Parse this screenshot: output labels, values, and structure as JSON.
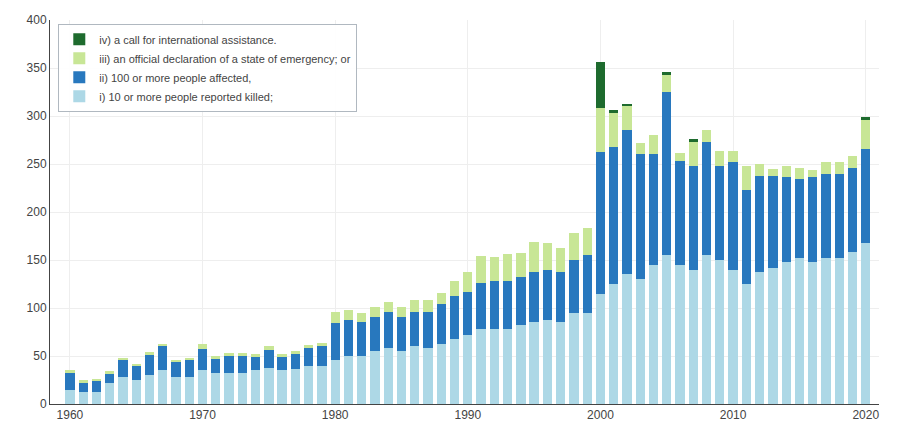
{
  "chart_data": {
    "type": "bar",
    "stacked": true,
    "x": [
      1960,
      1961,
      1962,
      1963,
      1964,
      1965,
      1966,
      1967,
      1968,
      1969,
      1970,
      1971,
      1972,
      1973,
      1974,
      1975,
      1976,
      1977,
      1978,
      1979,
      1980,
      1981,
      1982,
      1983,
      1984,
      1985,
      1986,
      1987,
      1988,
      1989,
      1990,
      1991,
      1992,
      1993,
      1994,
      1995,
      1996,
      1997,
      1998,
      1999,
      2000,
      2001,
      2002,
      2003,
      2004,
      2005,
      2006,
      2007,
      2008,
      2009,
      2010,
      2011,
      2012,
      2013,
      2014,
      2015,
      2016,
      2017,
      2018,
      2019,
      2020
    ],
    "series": [
      {
        "name": "i) 10 or more people reported killed;",
        "color": "#add8e6",
        "values": [
          15,
          12,
          12,
          22,
          28,
          25,
          30,
          35,
          28,
          28,
          35,
          32,
          32,
          32,
          35,
          38,
          35,
          36,
          40,
          40,
          46,
          50,
          50,
          55,
          58,
          55,
          60,
          58,
          62,
          68,
          72,
          78,
          78,
          78,
          82,
          85,
          88,
          85,
          95,
          95,
          115,
          125,
          135,
          130,
          145,
          155,
          145,
          140,
          155,
          150,
          140,
          125,
          138,
          142,
          148,
          152,
          148,
          152,
          152,
          158,
          168
        ]
      },
      {
        "name": "ii) 100 or more people affected,",
        "color": "#2878be",
        "values": [
          18,
          10,
          12,
          10,
          18,
          15,
          22,
          26,
          16,
          18,
          22,
          15,
          18,
          18,
          14,
          18,
          14,
          16,
          18,
          20,
          38,
          38,
          35,
          36,
          38,
          36,
          36,
          38,
          42,
          44,
          45,
          48,
          50,
          50,
          50,
          52,
          52,
          52,
          55,
          60,
          148,
          143,
          150,
          130,
          115,
          170,
          108,
          108,
          118,
          98,
          112,
          98,
          100,
          95,
          88,
          82,
          88,
          88,
          88,
          88,
          98
        ]
      },
      {
        "name": "iii) an official declaration of a state of emergency; or",
        "color": "#c8e696",
        "values": [
          2,
          3,
          2,
          2,
          2,
          2,
          2,
          2,
          2,
          2,
          5,
          3,
          3,
          3,
          3,
          4,
          3,
          3,
          3,
          4,
          12,
          10,
          10,
          10,
          10,
          10,
          12,
          12,
          12,
          16,
          20,
          28,
          25,
          28,
          25,
          32,
          28,
          25,
          28,
          28,
          45,
          35,
          25,
          12,
          20,
          18,
          8,
          25,
          12,
          16,
          12,
          25,
          12,
          8,
          12,
          12,
          8,
          12,
          12,
          12,
          30
        ]
      },
      {
        "name": "iv) a call for international assistance.",
        "color": "#1e6b2e",
        "values": [
          0,
          0,
          0,
          0,
          0,
          0,
          0,
          0,
          0,
          0,
          0,
          0,
          0,
          0,
          0,
          0,
          0,
          0,
          0,
          0,
          0,
          0,
          0,
          0,
          0,
          0,
          0,
          0,
          0,
          0,
          0,
          0,
          0,
          0,
          0,
          0,
          0,
          0,
          0,
          0,
          48,
          3,
          3,
          0,
          0,
          3,
          0,
          3,
          0,
          0,
          0,
          0,
          0,
          0,
          0,
          0,
          0,
          0,
          0,
          0,
          3
        ]
      }
    ],
    "xlim": [
      1958.5,
      2021.0
    ],
    "xticks": [
      1960,
      1970,
      1980,
      1990,
      2000,
      2010,
      2020
    ],
    "ylim": [
      0,
      400
    ],
    "yticks": [
      0,
      50,
      100,
      150,
      200,
      250,
      300,
      350,
      400
    ],
    "grid": true,
    "legend": "upper left"
  }
}
